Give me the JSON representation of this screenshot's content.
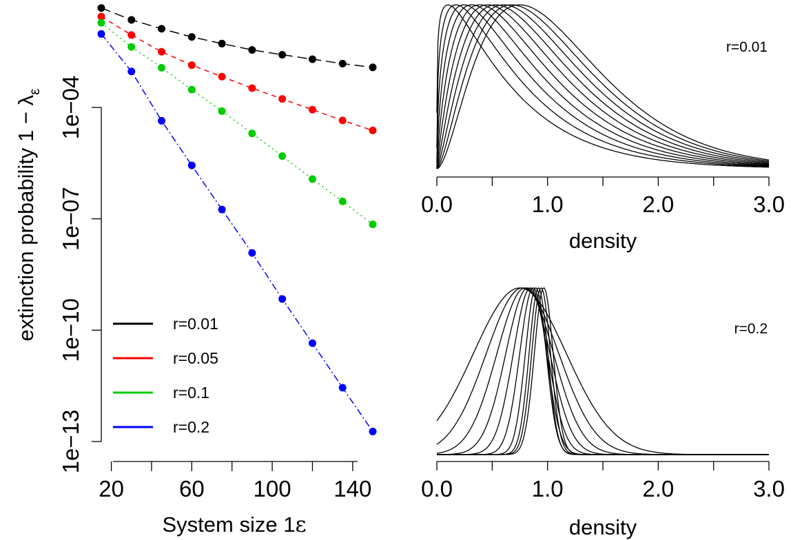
{
  "chart_data": [
    {
      "type": "line",
      "ylabel": "extinction probability 1 − λ",
      "ylabel_sub": "ε",
      "xlabel": "System size 1",
      "xlabel_suffix": "ε",
      "y_scale": "log10",
      "x_ticks": [
        20,
        60,
        100,
        140
      ],
      "x_minor_ticks": [
        40,
        80,
        120
      ],
      "y_ticks": [
        -4,
        -7,
        -10,
        -13
      ],
      "y_tick_labels": [
        "1e−04",
        "1e−07",
        "1e−10",
        "1e−13"
      ],
      "x": [
        15,
        30,
        45,
        60,
        75,
        90,
        105,
        120,
        135,
        150
      ],
      "xlim": [
        15,
        150
      ],
      "ylim_log10": [
        -13,
        -1.5
      ],
      "legend_position": "bottom-left",
      "series": [
        {
          "name": "r=0.01",
          "color": "#000000",
          "dash": "long-dash",
          "log10_values": [
            -1.32,
            -1.64,
            -1.88,
            -2.1,
            -2.28,
            -2.45,
            -2.58,
            -2.7,
            -2.82,
            -2.92
          ]
        },
        {
          "name": "r=0.05",
          "color": "#ff0000",
          "dash": "dashed",
          "log10_values": [
            -1.55,
            -2.05,
            -2.5,
            -2.86,
            -3.17,
            -3.48,
            -3.77,
            -4.06,
            -4.35,
            -4.62
          ]
        },
        {
          "name": "r=0.1",
          "color": "#00cc00",
          "dash": "dotted",
          "log10_values": [
            -1.72,
            -2.37,
            -2.93,
            -3.52,
            -4.1,
            -4.7,
            -5.31,
            -5.93,
            -6.53,
            -7.15
          ]
        },
        {
          "name": "r=0.2",
          "color": "#0000ff",
          "dash": "dot-dash",
          "log10_values": [
            -2.02,
            -3.03,
            -4.36,
            -5.56,
            -6.75,
            -7.92,
            -9.16,
            -10.35,
            -11.55,
            -12.73
          ]
        }
      ]
    },
    {
      "type": "line",
      "label": "r=0.01",
      "xlabel": "density",
      "x_ticks": [
        0.0,
        1.0,
        2.0,
        3.0
      ],
      "x_tick_labels": [
        "0.0",
        "1.0",
        "2.0",
        "3.0"
      ],
      "x_minor_ticks": [
        0.5,
        1.5,
        2.5
      ],
      "xlim": [
        0,
        3
      ],
      "curves": {
        "count": 10,
        "line_color": "#000000"
      }
    },
    {
      "type": "line",
      "label": "r=0.2",
      "xlabel": "density",
      "x_ticks": [
        0.0,
        1.0,
        2.0,
        3.0
      ],
      "x_tick_labels": [
        "0.0",
        "1.0",
        "2.0",
        "3.0"
      ],
      "x_minor_ticks": [
        0.5,
        1.5,
        2.5
      ],
      "xlim": [
        0,
        3
      ],
      "curves": {
        "count": 10,
        "line_color": "#000000"
      }
    }
  ]
}
